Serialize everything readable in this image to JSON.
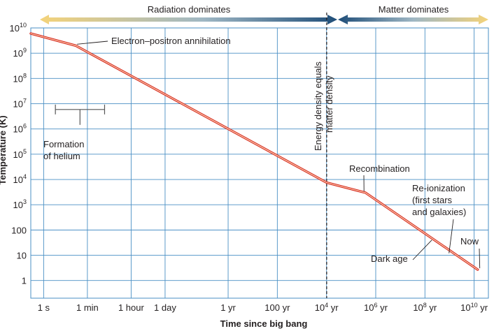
{
  "chart_data": {
    "type": "line",
    "xlabel": "Time since big bang",
    "ylabel": "Temperature (K)",
    "x_scale": "log",
    "y_scale": "log",
    "xlim_seconds": [
      0.3,
      1.2e+18
    ],
    "ylim_kelvin": [
      0.2,
      10000000000.0
    ],
    "x_ticks": [
      {
        "label": "1 s",
        "value": 1
      },
      {
        "label": "1 min",
        "value": 60
      },
      {
        "label": "1 hour",
        "value": 3600
      },
      {
        "label": "1 day",
        "value": 86400
      },
      {
        "label": "1 yr",
        "value": 31557600
      },
      {
        "label": "100 yr",
        "value": 3155760000
      },
      {
        "label": "10",
        "sup": "4",
        "suffix": " yr",
        "value": 315576000000
      },
      {
        "label": "10",
        "sup": "6",
        "suffix": " yr",
        "value": 31557600000000
      },
      {
        "label": "10",
        "sup": "8",
        "suffix": " yr",
        "value": 3155760000000000
      },
      {
        "label": "10",
        "sup": "10",
        "suffix": " yr",
        "value": 315576000000000000
      }
    ],
    "y_ticks": [
      {
        "label": "10",
        "sup": "10",
        "value": 10000000000.0
      },
      {
        "label": "10",
        "sup": "9",
        "value": 1000000000.0
      },
      {
        "label": "10",
        "sup": "8",
        "value": 100000000.0
      },
      {
        "label": "10",
        "sup": "7",
        "value": 10000000.0
      },
      {
        "label": "10",
        "sup": "6",
        "value": 1000000.0
      },
      {
        "label": "10",
        "sup": "5",
        "value": 100000.0
      },
      {
        "label": "10",
        "sup": "4",
        "value": 10000.0
      },
      {
        "label": "10",
        "sup": "3",
        "value": 1000.0
      },
      {
        "label": "100",
        "sup": "",
        "value": 100
      },
      {
        "label": "10",
        "sup": "",
        "value": 10
      },
      {
        "label": "1",
        "sup": "",
        "value": 1
      }
    ],
    "series": [
      {
        "points": [
          {
            "x": 0.3,
            "y": 6000000000.0
          },
          {
            "x": 20,
            "y": 2000000000.0
          },
          {
            "x": 320000000000.0,
            "y": 7500.0
          },
          {
            "x": 12000000000000.0,
            "y": 3000.0
          },
          {
            "x": 4.4e+17,
            "y": 2.7
          }
        ]
      }
    ],
    "era_bands": [
      {
        "label": "Radiation dominates",
        "from": 0.3,
        "to": 320000000000.0,
        "color": "#f4d37a"
      },
      {
        "label": "Matter dominates",
        "from": 320000000000.0,
        "to": 1.2e+18,
        "color": "#f4d37a"
      }
    ],
    "equality_line": {
      "x": 320000000000.0,
      "label_lines": [
        "Energy density equals",
        "matter density"
      ]
    },
    "helium_formation": {
      "from": 3,
      "to": 300,
      "temperature": 2000000.0,
      "label_lines": [
        "Formation",
        "of helium"
      ]
    },
    "annotations": [
      {
        "id": "electron-positron",
        "text": [
          "Electron–positron annihilation"
        ],
        "at": {
          "x": 20,
          "y": 2000000000.0
        }
      },
      {
        "id": "recombination",
        "text": [
          "Recombination"
        ],
        "at": {
          "x": 12000000000000.0,
          "y": 3000.0
        }
      },
      {
        "id": "reionization",
        "text": [
          "Re-ionization",
          "(first stars",
          "and galaxies)"
        ],
        "at": {
          "x": 3e+16,
          "y": 12
        }
      },
      {
        "id": "dark-age",
        "text": [
          "Dark age"
        ],
        "at": {
          "x": 6000000000000000.0,
          "y": 40
        }
      },
      {
        "id": "now",
        "text": [
          "Now"
        ],
        "at": {
          "x": 4.4e+17,
          "y": 2.7
        }
      }
    ],
    "colors": {
      "grid": "#4a8fc4",
      "curve_outer": "#d7261e",
      "curve_inner": "#f6c2a4",
      "arrow_dark": "#1f4e79",
      "band_light": "#f4d37a"
    },
    "grid": true
  }
}
